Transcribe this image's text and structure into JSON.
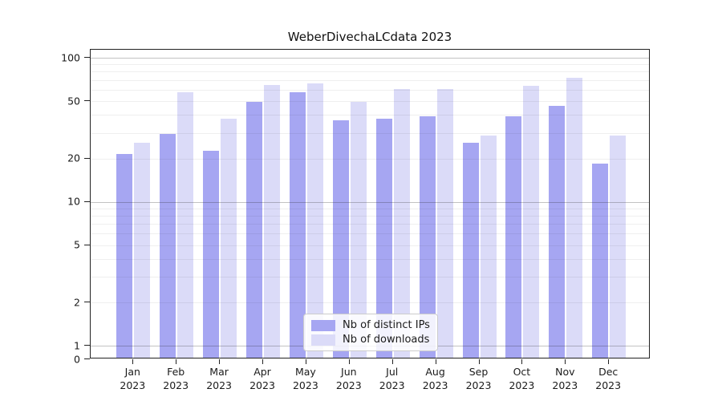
{
  "title": "WeberDivechaLCdata 2023",
  "colors": {
    "distinct_ips": "#a6a6f2",
    "downloads": "#dbdbf8",
    "grid_major": "rgba(40,40,40,0.28)",
    "grid_minor": "rgba(40,40,40,0.075)",
    "axis": "#222222",
    "text": "#1a1a1a"
  },
  "y_axis": {
    "tick_values": [
      100,
      50,
      20,
      10,
      5,
      2,
      1,
      0
    ],
    "tick_labels": [
      "100",
      "50",
      "20",
      "10",
      "5",
      "2",
      "1",
      "0"
    ],
    "minor_gridline_values": [
      90,
      80,
      70,
      60,
      40,
      30,
      9,
      8,
      7,
      6,
      4,
      3
    ],
    "scale": "symlog"
  },
  "x_axis": {
    "months": [
      "Jan",
      "Feb",
      "Mar",
      "Apr",
      "May",
      "Jun",
      "Jul",
      "Aug",
      "Sep",
      "Oct",
      "Nov",
      "Dec"
    ],
    "year": "2023"
  },
  "legend": {
    "entries": [
      {
        "label": "Nb of distinct IPs",
        "series": "distinct_ips"
      },
      {
        "label": "Nb of downloads",
        "series": "downloads"
      }
    ],
    "position": "lower center"
  },
  "chart_data": {
    "type": "bar",
    "title": "WeberDivechaLCdata 2023",
    "categories": [
      "Jan 2023",
      "Feb 2023",
      "Mar 2023",
      "Apr 2023",
      "May 2023",
      "Jun 2023",
      "Jul 2023",
      "Aug 2023",
      "Sep 2023",
      "Oct 2023",
      "Nov 2023",
      "Dec 2023"
    ],
    "series": [
      {
        "name": "Nb of distinct IPs",
        "color": "#a6a6f2",
        "values": [
          21,
          29,
          22,
          48,
          56,
          36,
          37,
          38,
          25,
          38,
          45,
          18
        ]
      },
      {
        "name": "Nb of downloads",
        "color": "#dbdbf8",
        "values": [
          25,
          56,
          37,
          63,
          65,
          48,
          59,
          59,
          28,
          62,
          71,
          28
        ]
      }
    ],
    "xlabel": "",
    "ylabel": "",
    "yscale": "log (symlog, linear below 1, 0 baseline)",
    "ylim": [
      0,
      111
    ],
    "yticks": [
      0,
      1,
      2,
      5,
      10,
      20,
      50,
      100
    ],
    "grid": "horizontal major and minor, drawn over bars",
    "legend_position": "lower center"
  }
}
